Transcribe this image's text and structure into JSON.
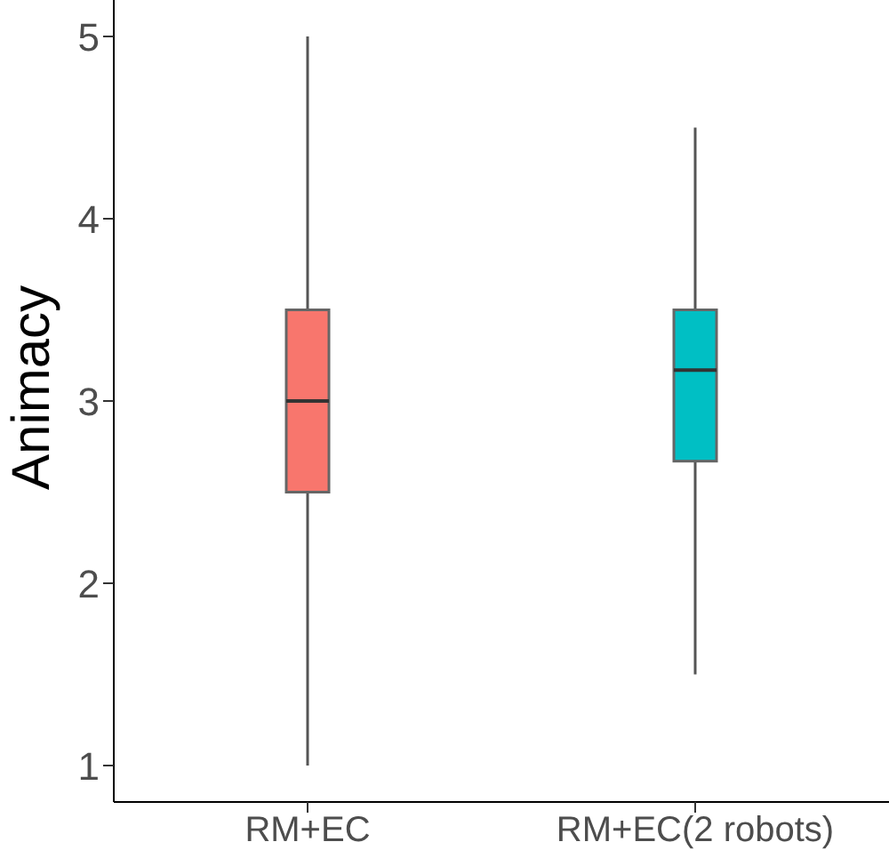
{
  "chart_data": {
    "type": "box",
    "ylabel": "Animacy",
    "categories": [
      "RM+EC",
      "RM+EC(2 robots)"
    ],
    "colors": [
      "#f8766d",
      "#00bfc4"
    ],
    "boxes": [
      {
        "low": 1,
        "q1": 2.5,
        "median": 3,
        "q3": 3.5,
        "high": 5
      },
      {
        "low": 1.5,
        "q1": 2.67,
        "median": 3.17,
        "q3": 3.5,
        "high": 4.5
      }
    ],
    "ylim": [
      0.8,
      5.2
    ],
    "yticks": [
      1,
      2,
      3,
      4,
      5
    ],
    "grid": false
  }
}
